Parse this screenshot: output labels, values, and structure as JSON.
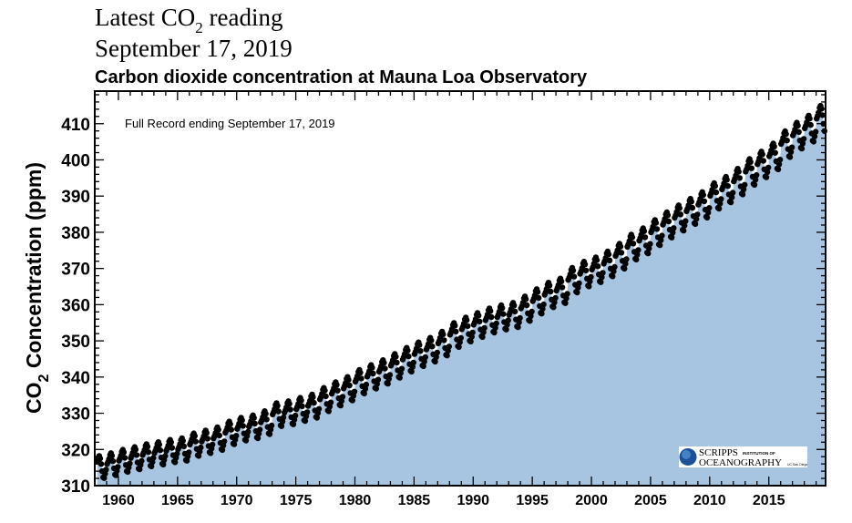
{
  "header": {
    "line1_prefix": "Latest CO",
    "line1_sub": "2",
    "line1_suffix": " reading",
    "line2": "September 17, 2019"
  },
  "chart_data": {
    "type": "scatter",
    "title": "Carbon dioxide concentration at Mauna Loa Observatory",
    "annotation": "Full Record ending September 17, 2019",
    "ylabel_prefix": "CO",
    "ylabel_sub": "2",
    "ylabel_suffix": " Concentration (ppm)",
    "xlabel": "",
    "xlim": [
      1958.0,
      2019.8
    ],
    "ylim": [
      310,
      419
    ],
    "x_ticks": [
      1960,
      1965,
      1970,
      1975,
      1980,
      1985,
      1990,
      1995,
      2000,
      2005,
      2010,
      2015
    ],
    "y_ticks": [
      310,
      320,
      330,
      340,
      350,
      360,
      370,
      380,
      390,
      400,
      410
    ],
    "grid": false,
    "fill_under_curve": true,
    "colors": {
      "fill": "#a7c4e1",
      "points": "#000000",
      "axis": "#000000"
    },
    "annual_mean_years": [
      1958,
      1959,
      1960,
      1961,
      1962,
      1963,
      1964,
      1965,
      1966,
      1967,
      1968,
      1969,
      1970,
      1971,
      1972,
      1973,
      1974,
      1975,
      1976,
      1977,
      1978,
      1979,
      1980,
      1981,
      1982,
      1983,
      1984,
      1985,
      1986,
      1987,
      1988,
      1989,
      1990,
      1991,
      1992,
      1993,
      1994,
      1995,
      1996,
      1997,
      1998,
      1999,
      2000,
      2001,
      2002,
      2003,
      2004,
      2005,
      2006,
      2007,
      2008,
      2009,
      2010,
      2011,
      2012,
      2013,
      2014,
      2015,
      2016,
      2017,
      2018,
      2019
    ],
    "annual_mean_ppm": [
      315.2,
      315.98,
      316.91,
      317.64,
      318.45,
      318.99,
      319.62,
      320.04,
      321.37,
      322.18,
      323.05,
      324.62,
      325.68,
      326.32,
      327.46,
      329.68,
      330.19,
      331.12,
      332.03,
      333.84,
      335.41,
      336.84,
      338.76,
      340.12,
      341.48,
      343.15,
      344.85,
      346.35,
      347.61,
      349.31,
      351.69,
      353.2,
      354.45,
      355.7,
      356.54,
      357.21,
      358.96,
      360.97,
      362.74,
      363.88,
      366.84,
      368.54,
      369.71,
      371.32,
      373.45,
      375.98,
      377.7,
      379.98,
      382.09,
      384.02,
      385.83,
      387.64,
      390.1,
      391.85,
      394.06,
      396.74,
      398.81,
      401.01,
      404.41,
      406.76,
      408.72,
      411.4
    ],
    "monthly_seasonal_offset_ppm": [
      0.0,
      0.6,
      1.4,
      2.5,
      3.0,
      2.3,
      0.8,
      -1.2,
      -2.9,
      -3.1,
      -1.9,
      -0.8
    ],
    "record_start": "1958-03",
    "record_end": "2019-09"
  },
  "logo": {
    "name": "SCRIPPS",
    "tag": "INSTITUTION OF",
    "line2": "OCEANOGRAPHY",
    "small": "UC San Diego"
  }
}
